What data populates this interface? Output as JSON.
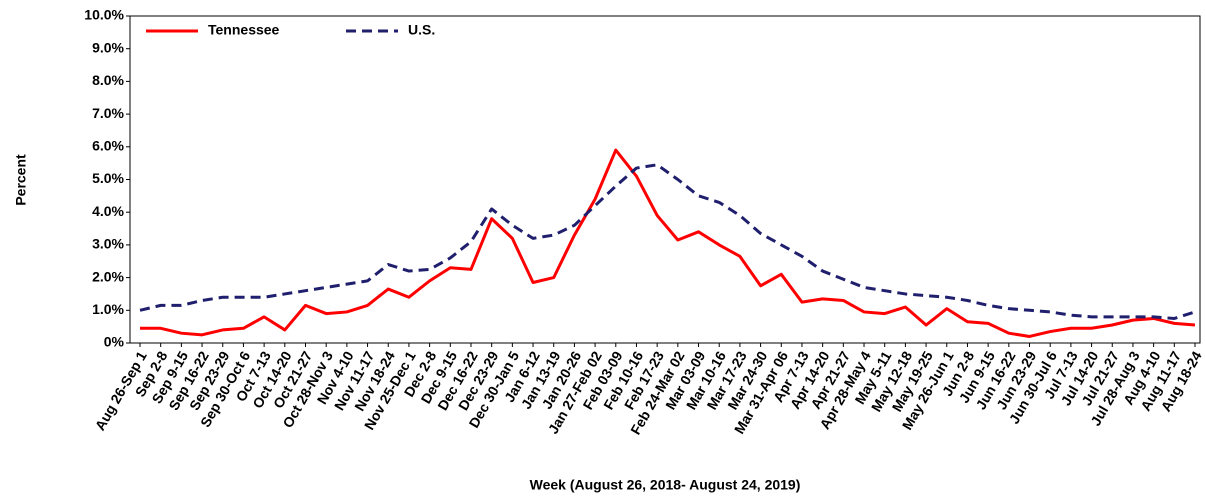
{
  "chart_data": {
    "type": "line",
    "x_label": "Week (August 26, 2018- August 24, 2019)",
    "y_label": "Percent",
    "categories": [
      "Aug 26-Sep 1",
      "Sep 2-8",
      "Sep 9-15",
      "Sep 16-22",
      "Sep 23-29",
      "Sep 30-Oct 6",
      "Oct 7-13",
      "Oct 14-20",
      "Oct 21-27",
      "Oct 28-Nov 3",
      "Nov 4-10",
      "Nov 11-17",
      "Nov 18-24",
      "Nov 25-Dec 1",
      "Dec 2-8",
      "Dec 9-15",
      "Dec 16-22",
      "Dec 23-29",
      "Dec 30-Jan 5",
      "Jan 6-12",
      "Jan 13-19",
      "Jan 20-26",
      "Jan 27-Feb 02",
      "Feb 03-09",
      "Feb 10-16",
      "Feb 17-23",
      "Feb 24-Mar 02",
      "Mar 03-09",
      "Mar 10-16",
      "Mar 17-23",
      "Mar 24-30",
      "Mar 31-Apr 06",
      "Apr 7-13",
      "Apr 14-20",
      "Apr 21-27",
      "Apr 28-May 4",
      "May 5-11",
      "May 12-18",
      "May 19-25",
      "May 26-Jun 1",
      "Jun 2-8",
      "Jun 9-15",
      "Jun 16-22",
      "Jun 23-29",
      "Jun 30-Jul 6",
      "Jul 7-13",
      "Jul 14-20",
      "Jul 21-27",
      "Jul 28-Aug 3",
      "Aug 4-10",
      "Aug 11-17",
      "Aug 18-24"
    ],
    "series": [
      {
        "name": "Tennessee",
        "color": "#ff0000",
        "dash": false,
        "values": [
          0.45,
          0.45,
          0.3,
          0.25,
          0.4,
          0.45,
          0.8,
          0.4,
          1.15,
          0.9,
          0.95,
          1.15,
          1.65,
          1.4,
          1.9,
          2.3,
          2.25,
          3.8,
          3.2,
          1.85,
          2.0,
          3.3,
          4.4,
          5.9,
          5.1,
          3.9,
          3.15,
          3.4,
          3.0,
          2.65,
          1.75,
          2.1,
          1.25,
          1.35,
          1.3,
          0.95,
          0.9,
          1.1,
          0.55,
          1.05,
          0.65,
          0.6,
          0.3,
          0.2,
          0.35,
          0.45,
          0.45,
          0.55,
          0.7,
          0.75,
          0.6,
          0.55
        ]
      },
      {
        "name": "U.S.",
        "color": "#1f1f6e",
        "dash": true,
        "values": [
          1.0,
          1.15,
          1.15,
          1.3,
          1.4,
          1.4,
          1.4,
          1.5,
          1.6,
          1.7,
          1.8,
          1.9,
          2.4,
          2.2,
          2.25,
          2.6,
          3.1,
          4.1,
          3.6,
          3.2,
          3.3,
          3.6,
          4.2,
          4.8,
          5.35,
          5.45,
          5.0,
          4.5,
          4.3,
          3.9,
          3.35,
          3.0,
          2.65,
          2.2,
          1.95,
          1.7,
          1.6,
          1.5,
          1.45,
          1.4,
          1.3,
          1.15,
          1.05,
          1.0,
          0.95,
          0.85,
          0.8,
          0.8,
          0.8,
          0.8,
          0.75,
          0.95
        ]
      }
    ],
    "ylim": [
      0,
      10
    ],
    "yticks": [
      {
        "value": 0,
        "label": "0%"
      },
      {
        "value": 1,
        "label": "1.0%"
      },
      {
        "value": 2,
        "label": "2.0%"
      },
      {
        "value": 3,
        "label": "3.0%"
      },
      {
        "value": 4,
        "label": "4.0%"
      },
      {
        "value": 5,
        "label": "5.0%"
      },
      {
        "value": 6,
        "label": "6.0%"
      },
      {
        "value": 7,
        "label": "7.0%"
      },
      {
        "value": 8,
        "label": "8.0%"
      },
      {
        "value": 9,
        "label": "9.0%"
      },
      {
        "value": 10,
        "label": "10.0%"
      }
    ],
    "legend": "upper left"
  }
}
